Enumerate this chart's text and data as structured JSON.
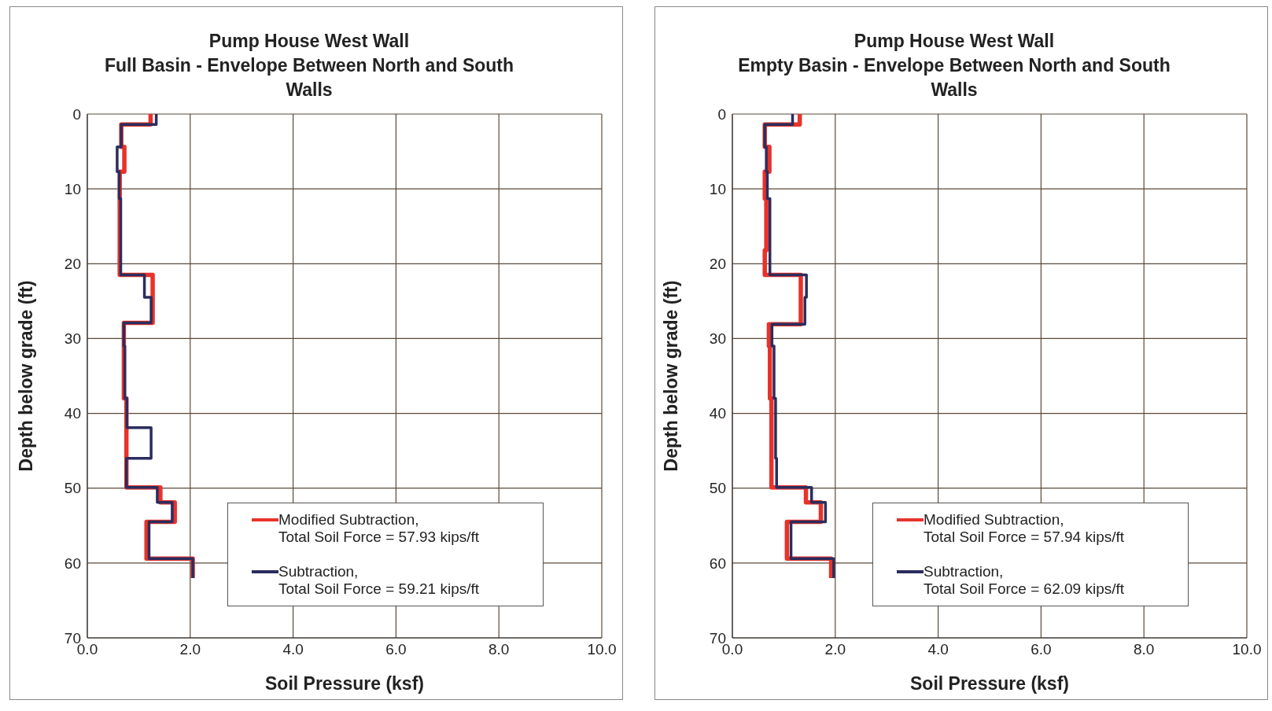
{
  "chart_data": [
    {
      "type": "line",
      "title": "Pump House West Wall",
      "subtitle": "Full Basin - Envelope Between North and South Walls",
      "xlabel": "Soil Pressure (ksf)",
      "ylabel": "Depth below grade (ft)",
      "xlim": [
        0,
        10
      ],
      "xticks": [
        {
          "value": 0,
          "label": "0.0"
        },
        {
          "value": 2,
          "label": "2.0"
        },
        {
          "value": 4,
          "label": "4.0"
        },
        {
          "value": 6,
          "label": "6.0"
        },
        {
          "value": 8,
          "label": "8.0"
        },
        {
          "value": 10,
          "label": "10.0"
        }
      ],
      "ylim": [
        70,
        0
      ],
      "yticks": [
        0,
        10,
        20,
        30,
        40,
        50,
        60,
        70
      ],
      "grid": true,
      "legend": "bottom right",
      "marker": "none",
      "series": [
        {
          "name": "Modified Subtraction, Total Soil Force = 57.93 kips/ft",
          "color": "#e8322a",
          "x": [
            1.23,
            1.23,
            0.66,
            0.66,
            0.72,
            0.72,
            0.63,
            0.63,
            1.27,
            1.27,
            0.71,
            0.71,
            0.76,
            0.76,
            1.42,
            1.42,
            1.7,
            1.7,
            1.15,
            1.15,
            2.05,
            2.05
          ],
          "values": [
            0,
            1.4,
            1.4,
            4.4,
            4.4,
            7.7,
            7.7,
            21.5,
            21.5,
            27.9,
            27.9,
            38,
            38,
            49.9,
            49.9,
            51.9,
            51.9,
            54.5,
            54.5,
            59.4,
            59.4,
            62
          ]
        },
        {
          "name": "Subtraction, Total Soil Force = 59.21 kips/ft",
          "color": "#2b2d5e",
          "x": [
            1.34,
            1.34,
            0.66,
            0.66,
            0.58,
            0.58,
            0.62,
            0.62,
            0.65,
            0.65,
            1.11,
            1.11,
            1.24,
            1.24,
            0.71,
            0.71,
            0.73,
            0.73,
            0.77,
            0.77,
            1.24,
            1.24,
            0.76,
            0.76,
            1.36,
            1.36,
            1.65,
            1.65,
            1.2,
            1.2,
            2.05,
            2.05
          ],
          "values": [
            0,
            1.4,
            1.4,
            4.4,
            4.4,
            7.7,
            7.7,
            11.3,
            11.3,
            21.5,
            21.5,
            24.5,
            24.5,
            27.9,
            27.9,
            31,
            31,
            38,
            38,
            41.9,
            41.9,
            46,
            46,
            49.9,
            49.9,
            51.9,
            51.9,
            54.5,
            54.5,
            59.4,
            59.4,
            62
          ]
        }
      ]
    },
    {
      "type": "line",
      "title": "Pump House West Wall",
      "subtitle": "Empty Basin - Envelope Between North and South Walls",
      "xlabel": "Soil Pressure (ksf)",
      "ylabel": "Depth below grade (ft)",
      "xlim": [
        0,
        10
      ],
      "xticks": [
        {
          "value": 0,
          "label": "0.0"
        },
        {
          "value": 2,
          "label": "2.0"
        },
        {
          "value": 4,
          "label": "4.0"
        },
        {
          "value": 6,
          "label": "6.0"
        },
        {
          "value": 8,
          "label": "8.0"
        },
        {
          "value": 10,
          "label": "10.0"
        }
      ],
      "ylim": [
        70,
        0
      ],
      "yticks": [
        0,
        10,
        20,
        30,
        40,
        50,
        60,
        70
      ],
      "grid": true,
      "legend": "bottom right",
      "marker": "none",
      "series": [
        {
          "name": "Modified Subtraction, Total Soil Force = 57.94 kips/ft",
          "color": "#e8322a",
          "x": [
            1.31,
            1.31,
            0.63,
            0.63,
            0.72,
            0.72,
            0.63,
            0.63,
            0.66,
            0.66,
            0.63,
            0.63,
            1.33,
            1.33,
            0.71,
            0.71,
            0.73,
            0.73,
            0.76,
            0.76,
            1.43,
            1.43,
            1.72,
            1.72,
            1.06,
            1.06,
            1.92,
            1.92
          ],
          "values": [
            0,
            1.4,
            1.4,
            4.4,
            4.4,
            7.7,
            7.7,
            11.3,
            11.3,
            18.2,
            18.2,
            21.5,
            21.5,
            28.1,
            28.1,
            31,
            31,
            38,
            38,
            49.9,
            49.9,
            51.9,
            51.9,
            54.5,
            54.5,
            59.4,
            59.4,
            62
          ]
        },
        {
          "name": "Subtraction, Total Soil Force = 62.09 kips/ft",
          "color": "#2b2d5e",
          "x": [
            1.17,
            1.17,
            0.63,
            0.63,
            0.66,
            0.66,
            0.68,
            0.68,
            0.73,
            0.73,
            1.44,
            1.44,
            1.41,
            1.41,
            0.77,
            0.77,
            0.81,
            0.81,
            0.84,
            0.84,
            0.86,
            0.86,
            1.54,
            1.54,
            1.81,
            1.81,
            1.14,
            1.14,
            1.97,
            1.97
          ],
          "values": [
            0,
            1.4,
            1.4,
            4.4,
            4.4,
            7.7,
            7.7,
            11.3,
            11.3,
            21.5,
            21.5,
            24.5,
            24.5,
            28.1,
            28.1,
            31,
            31,
            38,
            38,
            46,
            46,
            49.9,
            49.9,
            51.9,
            51.9,
            54.5,
            54.5,
            59.4,
            59.4,
            62
          ]
        }
      ]
    }
  ]
}
